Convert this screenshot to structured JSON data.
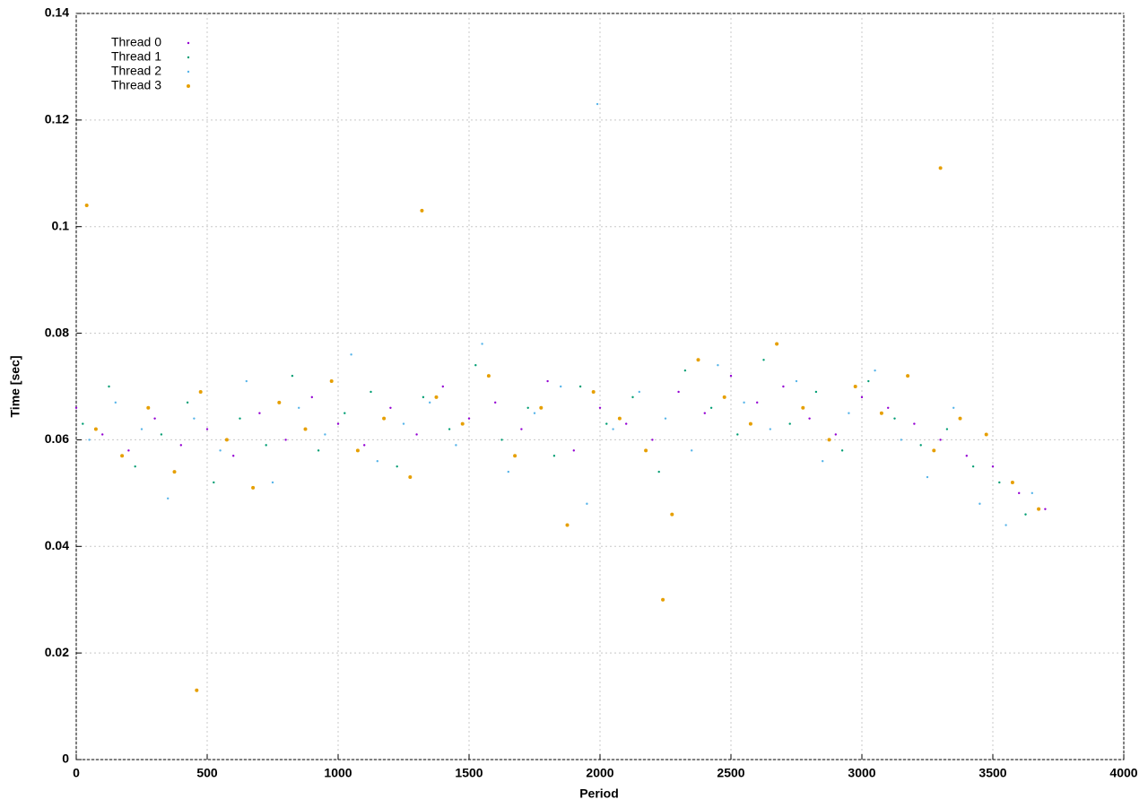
{
  "chart_data": {
    "type": "scatter",
    "xlabel": "Period",
    "ylabel": "Time [sec]",
    "xlim": [
      0,
      4000
    ],
    "xticks": [
      0,
      500,
      1000,
      1500,
      2000,
      2500,
      3000,
      3500,
      4000
    ],
    "ylim": [
      0,
      0.14
    ],
    "yticks": [
      0,
      0.02,
      0.04,
      0.06,
      0.08,
      0.1,
      0.12,
      0.14
    ],
    "grid": true,
    "legend": "top-left",
    "series": [
      {
        "name": "Thread 0",
        "color": "#9400d3",
        "x": [
          0,
          100,
          200,
          300,
          400,
          500,
          600,
          700,
          800,
          900,
          1000,
          1100,
          1200,
          1300,
          1400,
          1500,
          1600,
          1700,
          1800,
          1900,
          2000,
          2100,
          2200,
          2300,
          2400,
          2500,
          2600,
          2700,
          2800,
          2900,
          3000,
          3100,
          3200,
          3300,
          3400,
          3500,
          3600,
          3700
        ],
        "values": [
          0.066,
          0.061,
          0.058,
          0.064,
          0.059,
          0.062,
          0.057,
          0.065,
          0.06,
          0.068,
          0.063,
          0.059,
          0.066,
          0.061,
          0.07,
          0.064,
          0.067,
          0.062,
          0.071,
          0.058,
          0.066,
          0.063,
          0.06,
          0.069,
          0.065,
          0.072,
          0.067,
          0.07,
          0.064,
          0.061,
          0.068,
          0.066,
          0.063,
          0.06,
          0.057,
          0.055,
          0.05,
          0.047
        ]
      },
      {
        "name": "Thread 1",
        "color": "#009e73",
        "x": [
          25,
          125,
          225,
          325,
          425,
          525,
          625,
          725,
          825,
          925,
          1025,
          1125,
          1225,
          1325,
          1425,
          1525,
          1625,
          1725,
          1825,
          1925,
          2025,
          2125,
          2225,
          2325,
          2425,
          2525,
          2625,
          2725,
          2825,
          2925,
          3025,
          3125,
          3225,
          3325,
          3425,
          3525,
          3625
        ],
        "values": [
          0.063,
          0.07,
          0.055,
          0.061,
          0.067,
          0.052,
          0.064,
          0.059,
          0.072,
          0.058,
          0.065,
          0.069,
          0.055,
          0.068,
          0.062,
          0.074,
          0.06,
          0.066,
          0.057,
          0.07,
          0.063,
          0.068,
          0.054,
          0.073,
          0.066,
          0.061,
          0.075,
          0.063,
          0.069,
          0.058,
          0.071,
          0.064,
          0.059,
          0.062,
          0.055,
          0.052,
          0.046
        ]
      },
      {
        "name": "Thread 2",
        "color": "#56b4e9",
        "x": [
          50,
          150,
          250,
          350,
          450,
          550,
          650,
          750,
          850,
          950,
          1050,
          1150,
          1250,
          1350,
          1450,
          1550,
          1650,
          1750,
          1850,
          1950,
          2050,
          2150,
          2250,
          2350,
          2450,
          2550,
          2650,
          2750,
          2850,
          2950,
          3050,
          3150,
          3250,
          3350,
          3450,
          3550,
          3650,
          1990
        ],
        "values": [
          0.06,
          0.067,
          0.062,
          0.049,
          0.064,
          0.058,
          0.071,
          0.052,
          0.066,
          0.061,
          0.076,
          0.056,
          0.063,
          0.067,
          0.059,
          0.078,
          0.054,
          0.065,
          0.07,
          0.048,
          0.062,
          0.069,
          0.064,
          0.058,
          0.074,
          0.067,
          0.062,
          0.071,
          0.056,
          0.065,
          0.073,
          0.06,
          0.053,
          0.066,
          0.048,
          0.044,
          0.05,
          0.123
        ]
      },
      {
        "name": "Thread 3",
        "color": "#e69f00",
        "x": [
          75,
          175,
          275,
          375,
          475,
          575,
          675,
          775,
          875,
          975,
          1075,
          1175,
          1275,
          1375,
          1475,
          1575,
          1675,
          1775,
          1875,
          1975,
          2075,
          2175,
          2275,
          2375,
          2475,
          2575,
          2675,
          2775,
          2875,
          2975,
          3075,
          3175,
          3275,
          3375,
          3475,
          3575,
          3675,
          460,
          1320,
          3300,
          40,
          2240
        ],
        "values": [
          0.062,
          0.057,
          0.066,
          0.054,
          0.069,
          0.06,
          0.051,
          0.067,
          0.062,
          0.071,
          0.058,
          0.064,
          0.053,
          0.068,
          0.063,
          0.072,
          0.057,
          0.066,
          0.044,
          0.069,
          0.064,
          0.058,
          0.046,
          0.075,
          0.068,
          0.063,
          0.078,
          0.066,
          0.06,
          0.07,
          0.065,
          0.072,
          0.058,
          0.064,
          0.061,
          0.052,
          0.047,
          0.013,
          0.103,
          0.111,
          0.104,
          0.03
        ]
      }
    ]
  }
}
